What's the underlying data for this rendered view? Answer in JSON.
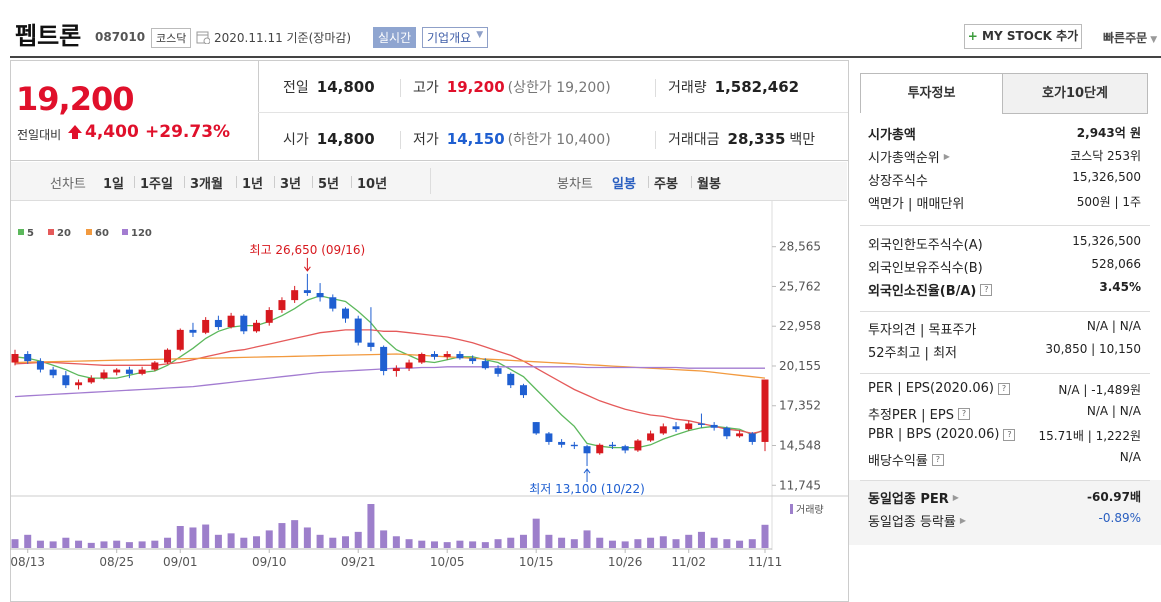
{
  "header": {
    "name": "펩트론",
    "code": "087010",
    "market": "코스닥",
    "date_note": "2020.11.11 기준(장마감)",
    "realtime": "실시간",
    "company_info": "기업개요",
    "my_stock": "MY STOCK 추가",
    "quick_order": "빠른주문"
  },
  "price": {
    "current": "19,200",
    "change_label": "전일대비",
    "change": "4,400",
    "change_pct": "+29.73%",
    "color": "#e0102b"
  },
  "summary": [
    [
      {
        "label": "전일",
        "value": "14,800"
      },
      {
        "label": "고가",
        "value": "19,200",
        "extra": "(상한가 19,200)",
        "color": "#e0102b"
      },
      {
        "label": "거래량",
        "value": "1,582,462"
      }
    ],
    [
      {
        "label": "시가",
        "value": "14,800"
      },
      {
        "label": "저가",
        "value": "14,150",
        "extra": "(하한가 10,400)",
        "color": "#1f5fd1"
      },
      {
        "label": "거래대금",
        "value": "28,335",
        "unit": "백만"
      }
    ]
  ],
  "tabs": {
    "line_chart": "선차트",
    "line_periods": [
      "1일",
      "1주일",
      "3개월",
      "1년",
      "3년",
      "5년",
      "10년"
    ],
    "candle_chart": "봉차트",
    "candle_periods": [
      "일봉",
      "주봉",
      "월봉"
    ],
    "active_candle": 0
  },
  "chart": {
    "type": "candlestick",
    "up_color": "#d7191f",
    "down_color": "#1f5fd1",
    "ylim": [
      11200,
      30800
    ],
    "yticks": [
      {
        "value": 28565,
        "label": "28,565"
      },
      {
        "value": 25762,
        "label": "25,762"
      },
      {
        "value": 22958,
        "label": "22,958"
      },
      {
        "value": 20155,
        "label": "20,155"
      },
      {
        "value": 17352,
        "label": "17,352"
      },
      {
        "value": 14548,
        "label": "14,548"
      },
      {
        "value": 11745,
        "label": "11,745"
      }
    ],
    "categories": [
      null,
      "08/13",
      null,
      null,
      null,
      null,
      null,
      null,
      "08/25",
      null,
      null,
      null,
      null,
      "09/01",
      null,
      null,
      null,
      null,
      null,
      null,
      "09/10",
      null,
      null,
      null,
      null,
      null,
      null,
      "09/21",
      null,
      null,
      null,
      null,
      null,
      null,
      "10/05",
      null,
      null,
      null,
      null,
      null,
      null,
      "10/15",
      null,
      null,
      null,
      null,
      null,
      null,
      "10/26",
      null,
      null,
      null,
      null,
      "11/02",
      null,
      null,
      null,
      null,
      null,
      "11/11"
    ],
    "candles": [
      [
        20400,
        21300,
        20200,
        21000
      ],
      [
        21000,
        21200,
        20300,
        20500
      ],
      [
        20500,
        20700,
        19700,
        19900
      ],
      [
        19900,
        20100,
        19300,
        19500
      ],
      [
        19500,
        19800,
        18600,
        18800
      ],
      [
        18800,
        19200,
        18500,
        19000
      ],
      [
        19000,
        19500,
        18900,
        19300
      ],
      [
        19300,
        19900,
        19200,
        19700
      ],
      [
        19700,
        20000,
        19500,
        19900
      ],
      [
        19900,
        20100,
        19300,
        19600
      ],
      [
        19600,
        20100,
        19500,
        19900
      ],
      [
        19900,
        20500,
        19800,
        20400
      ],
      [
        20400,
        21400,
        20300,
        21300
      ],
      [
        21300,
        22800,
        21200,
        22700
      ],
      [
        22700,
        23200,
        22200,
        22500
      ],
      [
        22500,
        23600,
        22400,
        23400
      ],
      [
        23400,
        23700,
        22700,
        22900
      ],
      [
        22900,
        23900,
        22800,
        23700
      ],
      [
        23700,
        23800,
        22400,
        22600
      ],
      [
        22600,
        23400,
        22500,
        23200
      ],
      [
        23200,
        24300,
        23000,
        24100
      ],
      [
        24100,
        25000,
        23900,
        24800
      ],
      [
        24800,
        25800,
        24600,
        25500
      ],
      [
        25500,
        26650,
        25100,
        25300
      ],
      [
        25300,
        26000,
        24700,
        25000
      ],
      [
        25000,
        25200,
        24000,
        24200
      ],
      [
        24200,
        24300,
        23200,
        23500
      ],
      [
        23500,
        23700,
        21600,
        21800
      ],
      [
        21800,
        24300,
        21200,
        21500
      ],
      [
        21500,
        21600,
        19500,
        19800
      ],
      [
        19800,
        20200,
        19400,
        20000
      ],
      [
        20000,
        20600,
        19800,
        20400
      ],
      [
        20400,
        21100,
        20300,
        21000
      ],
      [
        21000,
        21200,
        20600,
        20800
      ],
      [
        20800,
        21200,
        20600,
        21000
      ],
      [
        21000,
        21200,
        20600,
        20700
      ],
      [
        20700,
        20900,
        20300,
        20500
      ],
      [
        20500,
        20700,
        19900,
        20000
      ],
      [
        20000,
        20200,
        19400,
        19600
      ],
      [
        19600,
        19700,
        18600,
        18800
      ],
      [
        18800,
        18900,
        17900,
        18100
      ],
      [
        16200,
        16200,
        15300,
        15400
      ],
      [
        15400,
        15500,
        14600,
        14800
      ],
      [
        14800,
        15000,
        14400,
        14600
      ],
      [
        14600,
        14800,
        14300,
        14500
      ],
      [
        14500,
        14600,
        13100,
        14000
      ],
      [
        14000,
        14700,
        13900,
        14600
      ],
      [
        14600,
        14800,
        14300,
        14500
      ],
      [
        14500,
        14600,
        14000,
        14200
      ],
      [
        14200,
        15000,
        14100,
        14900
      ],
      [
        14900,
        15600,
        14800,
        15400
      ],
      [
        15400,
        16100,
        15300,
        15900
      ],
      [
        15900,
        16200,
        15500,
        15700
      ],
      [
        15700,
        16300,
        15600,
        16100
      ],
      [
        16100,
        16800,
        15800,
        16000
      ],
      [
        16000,
        16200,
        15600,
        15800
      ],
      [
        15800,
        15900,
        15000,
        15200
      ],
      [
        15200,
        15600,
        15100,
        15400
      ],
      [
        15400,
        15500,
        14600,
        14800
      ],
      [
        14800,
        19200,
        14150,
        19200
      ]
    ],
    "ma": [
      {
        "name": "5",
        "color": "#5cb85c",
        "values": [
          20800,
          20700,
          20500,
          20200,
          19900,
          19500,
          19300,
          19300,
          19300,
          19500,
          19700,
          19800,
          20200,
          20800,
          21400,
          22100,
          22600,
          22900,
          23000,
          23000,
          23300,
          23700,
          24200,
          24800,
          25100,
          24900,
          24700,
          24000,
          23200,
          22100,
          21300,
          20900,
          20500,
          20400,
          20600,
          20800,
          20800,
          20600,
          20400,
          19900,
          19400,
          18500,
          17600,
          16700,
          15900,
          14700,
          14500,
          14400,
          14400,
          14400,
          14600,
          15000,
          15300,
          15600,
          15800,
          15900,
          15800,
          15700,
          15300,
          15700
        ]
      },
      {
        "name": "20",
        "color": "#e55a5a",
        "values": [
          20300,
          20350,
          20400,
          20400,
          20350,
          20300,
          20250,
          20200,
          20200,
          20200,
          20200,
          20200,
          20300,
          20400,
          20600,
          20800,
          21000,
          21200,
          21300,
          21500,
          21700,
          21900,
          22100,
          22300,
          22500,
          22600,
          22700,
          22700,
          22700,
          22600,
          22600,
          22500,
          22400,
          22300,
          22200,
          22000,
          21800,
          21500,
          21200,
          20900,
          20500,
          20000,
          19500,
          19000,
          18500,
          18100,
          17700,
          17400,
          17100,
          16900,
          16700,
          16600,
          16400,
          16300,
          16100,
          15900,
          15700,
          15600,
          15400,
          15600
        ]
      },
      {
        "name": "60",
        "color": "#f29a3f",
        "values": [
          20400,
          20420,
          20440,
          20460,
          20480,
          20500,
          20520,
          20540,
          20560,
          20580,
          20600,
          20620,
          20640,
          20660,
          20680,
          20700,
          20720,
          20740,
          20760,
          20780,
          20800,
          20820,
          20840,
          20860,
          20880,
          20900,
          20920,
          20940,
          20960,
          20980,
          21000,
          20950,
          20900,
          20850,
          20800,
          20750,
          20700,
          20650,
          20600,
          20550,
          20500,
          20450,
          20400,
          20350,
          20300,
          20250,
          20200,
          20150,
          20100,
          20050,
          20000,
          19950,
          19900,
          19850,
          19800,
          19700,
          19600,
          19500,
          19400,
          19300
        ]
      },
      {
        "name": "120",
        "color": "#a37cd1",
        "values": [
          18000,
          18050,
          18100,
          18150,
          18200,
          18250,
          18300,
          18350,
          18400,
          18450,
          18500,
          18550,
          18600,
          18650,
          18700,
          18800,
          18900,
          19000,
          19100,
          19200,
          19300,
          19400,
          19500,
          19600,
          19700,
          19750,
          19800,
          19850,
          19900,
          19950,
          20000,
          20000,
          20050,
          20050,
          20100,
          20100,
          20100,
          20100,
          20100,
          20100,
          20100,
          20100,
          20100,
          20100,
          20100,
          20050,
          20050,
          20050,
          20050,
          20050,
          20050,
          20050,
          20050,
          20000,
          20000,
          20000,
          20000,
          20000,
          20000,
          20000
        ]
      }
    ],
    "annotations": {
      "high": "최고 26,650 (09/16)",
      "low": "최저 13,100 (10/22)"
    },
    "volume": {
      "name": "거래량",
      "color": "#9d7fcb",
      "values": [
        600000,
        900000,
        500000,
        450000,
        700000,
        500000,
        350000,
        450000,
        500000,
        400000,
        450000,
        500000,
        700000,
        1500000,
        1400000,
        1600000,
        900000,
        1000000,
        700000,
        800000,
        1200000,
        1700000,
        1900000,
        1400000,
        900000,
        700000,
        800000,
        1100000,
        3000000,
        1200000,
        800000,
        600000,
        500000,
        450000,
        400000,
        500000,
        450000,
        400000,
        600000,
        700000,
        900000,
        2000000,
        900000,
        700000,
        600000,
        1200000,
        700000,
        500000,
        450000,
        600000,
        700000,
        800000,
        600000,
        900000,
        1100000,
        700000,
        600000,
        500000,
        600000,
        1582462
      ]
    }
  },
  "info": {
    "tabs": [
      "투자정보",
      "호가10단계"
    ],
    "active_tab": 0,
    "groups": [
      [
        {
          "label": "시가총액",
          "value": "2,943억 원",
          "bold": true
        },
        {
          "label": "시가총액순위",
          "value": "코스닥 253위",
          "arrow": true
        },
        {
          "label": "상장주식수",
          "value": "15,326,500"
        },
        {
          "label": "액면가 | 매매단위",
          "value": "500원 | 1주"
        }
      ],
      [
        {
          "label": "외국인한도주식수(A)",
          "value": "15,326,500"
        },
        {
          "label": "외국인보유주식수(B)",
          "value": "528,066"
        },
        {
          "label": "외국인소진율(B/A)",
          "value": "3.45%",
          "bold": true,
          "help": true
        }
      ],
      [
        {
          "label": "투자의견 | 목표주가",
          "value": "N/A | N/A"
        },
        {
          "label": "52주최고 | 최저",
          "value": "30,850 | 10,150"
        }
      ],
      [
        {
          "label": "PER | EPS(2020.06)",
          "value": "N/A | -1,489원",
          "help": true
        },
        {
          "label": "추정PER | EPS",
          "value": "N/A | N/A",
          "help": true
        },
        {
          "label": "PBR | BPS (2020.06)",
          "value": "15.71배 | 1,222원",
          "help": true
        },
        {
          "label": "배당수익률",
          "value": "N/A",
          "help": true
        }
      ],
      [
        {
          "label": "동일업종 PER",
          "value": "-60.97배",
          "arrow": true,
          "bold": true
        },
        {
          "label": "동일업종 등락률",
          "value": "-0.89%",
          "arrow": true,
          "value_color": "#2a5fc0"
        }
      ]
    ]
  }
}
